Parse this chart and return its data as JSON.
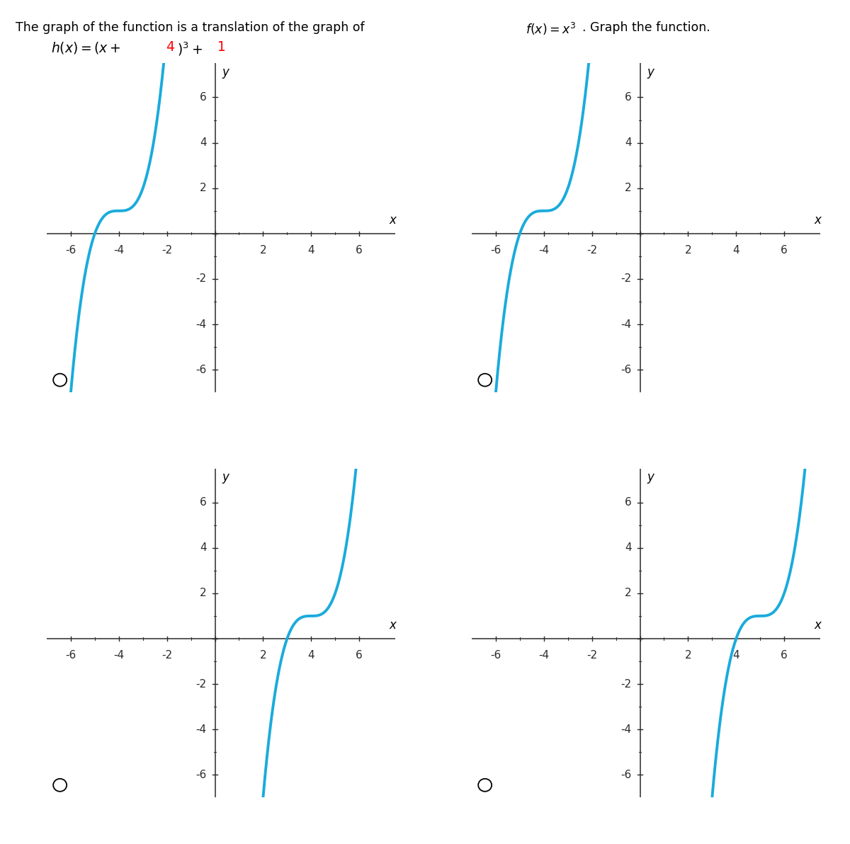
{
  "curve_color": "#1AABDC",
  "curve_lw": 2.8,
  "axis_color": "#2a2a2a",
  "tick_color": "#2a2a2a",
  "xlim": [
    -7,
    7.5
  ],
  "ylim": [
    -7,
    7.5
  ],
  "xticks": [
    -6,
    -4,
    -2,
    2,
    4,
    6
  ],
  "yticks": [
    -6,
    -4,
    -2,
    2,
    4,
    6
  ],
  "background_color": "#ffffff",
  "functions": [
    {
      "a": -4,
      "b": 1
    },
    {
      "a": -4,
      "b": 1
    },
    {
      "a": 4,
      "b": 1
    },
    {
      "a": 5,
      "b": 1
    }
  ]
}
